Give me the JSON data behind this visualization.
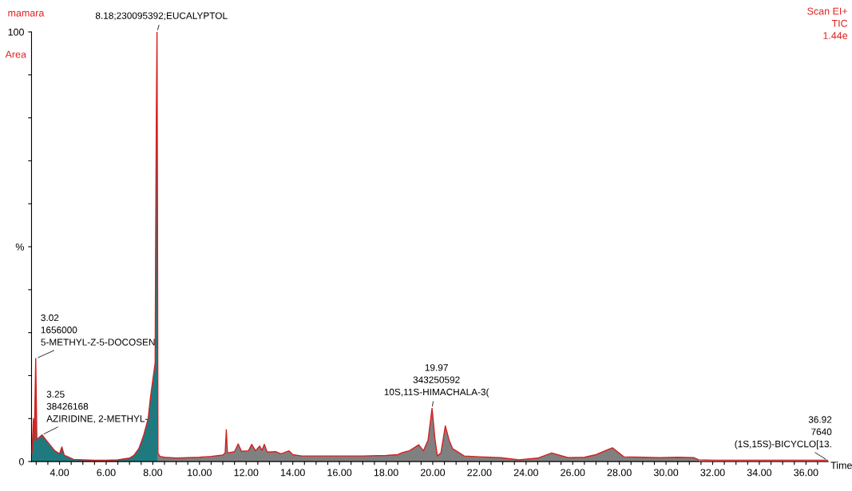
{
  "chart_data": {
    "type": "line",
    "title": "mamara",
    "ylabel": "Area",
    "xlabel": "Time",
    "series": [
      {
        "type": "area",
        "color": "#1f7a80",
        "x": [
          2.82,
          2.88,
          2.92,
          2.98,
          3.03,
          3.1,
          3.25,
          3.5,
          3.8,
          4.0,
          4.1,
          4.2,
          4.4,
          4.6,
          5.0,
          5.5,
          6.0,
          6.5,
          7.0,
          7.2,
          7.4,
          7.6,
          7.8,
          7.9,
          8.0,
          8.05,
          8.1,
          8.12,
          8.15,
          8.18,
          8.2,
          8.22
        ],
        "values": [
          2,
          10,
          5,
          24,
          5,
          5.5,
          6.2,
          4.5,
          2.5,
          1.8,
          3.4,
          1.5,
          1.0,
          0.5,
          0.4,
          0.3,
          0.3,
          0.4,
          0.8,
          1.5,
          3,
          6,
          10,
          15,
          19,
          21,
          23,
          50,
          80,
          100,
          60,
          2
        ]
      },
      {
        "type": "area",
        "color": "#808080",
        "x": [
          8.22,
          8.3,
          8.5,
          9.0,
          10.0,
          10.5,
          11.0,
          11.1,
          11.15,
          11.2,
          11.5,
          11.66,
          11.8,
          12.1,
          12.24,
          12.4,
          12.58,
          12.68,
          12.78,
          12.9,
          13.26,
          13.5,
          13.84,
          14.0,
          14.38,
          15.0,
          16.0,
          17.0,
          18.0,
          18.5,
          18.7,
          19.0,
          19.4,
          19.6,
          19.8,
          19.97,
          20.1,
          20.2,
          20.35,
          20.54,
          20.7,
          20.85,
          21.35,
          22.0,
          22.9,
          23.7,
          24.5,
          25.1,
          25.8,
          26.5,
          27.0,
          27.7,
          28.2,
          29.0,
          29.7,
          30.5,
          31.2,
          31.4
        ],
        "values": [
          2,
          1.2,
          1.0,
          0.8,
          1.0,
          1.2,
          1.5,
          2,
          7.4,
          2,
          2.3,
          4.1,
          2.4,
          2.5,
          4.0,
          2.5,
          3.6,
          2.6,
          4.0,
          2.2,
          2.3,
          1.8,
          2.5,
          1.6,
          1.3,
          1.3,
          1.3,
          1.3,
          1.4,
          1.6,
          2.1,
          2.5,
          3.9,
          2.5,
          5,
          12.4,
          5,
          1.3,
          2,
          8.3,
          5,
          3,
          1.3,
          1.1,
          0.9,
          0.4,
          0.8,
          2.0,
          0.9,
          1.0,
          1.6,
          3.2,
          1.1,
          1.0,
          0.9,
          1.0,
          0.9,
          0.4
        ]
      },
      {
        "color": "#d62020",
        "x": [
          2.82,
          2.88,
          2.92,
          2.98,
          3.03,
          3.1,
          3.25,
          3.5,
          3.8,
          4.0,
          4.1,
          4.2,
          4.4,
          4.6,
          5.0,
          5.5,
          6.0,
          6.5,
          7.0,
          7.2,
          7.4,
          7.6,
          7.8,
          7.9,
          8.0,
          8.05,
          8.1,
          8.12,
          8.15,
          8.18,
          8.2,
          8.22,
          8.3,
          8.5,
          9.0,
          10.0,
          10.5,
          11.0,
          11.1,
          11.15,
          11.2,
          11.5,
          11.66,
          11.8,
          12.1,
          12.24,
          12.4,
          12.58,
          12.68,
          12.78,
          12.9,
          13.26,
          13.5,
          13.84,
          14.0,
          14.38,
          15.0,
          16.0,
          17.0,
          18.0,
          18.5,
          18.7,
          19.0,
          19.4,
          19.6,
          19.8,
          19.97,
          20.1,
          20.2,
          20.35,
          20.54,
          20.7,
          20.85,
          21.35,
          22.0,
          22.9,
          23.7,
          24.5,
          25.1,
          25.8,
          26.5,
          27.0,
          27.7,
          28.2,
          29.0,
          29.7,
          30.5,
          31.2,
          31.4,
          32.0,
          34.0,
          36.92
        ],
        "values": [
          2,
          10,
          5,
          24,
          5,
          5.5,
          6.2,
          4.5,
          2.5,
          1.8,
          3.4,
          1.5,
          1.0,
          0.5,
          0.4,
          0.3,
          0.3,
          0.4,
          0.8,
          1.5,
          3,
          6,
          10,
          15,
          19,
          21,
          23,
          50,
          80,
          100,
          60,
          2,
          1.2,
          1.0,
          0.8,
          1.0,
          1.2,
          1.5,
          2,
          7.4,
          2,
          2.3,
          4.1,
          2.4,
          2.5,
          4.0,
          2.5,
          3.6,
          2.6,
          4.0,
          2.2,
          2.3,
          1.8,
          2.5,
          1.6,
          1.3,
          1.3,
          1.3,
          1.3,
          1.4,
          1.6,
          2.1,
          2.5,
          3.9,
          2.5,
          5,
          12.4,
          5,
          1.3,
          2,
          8.3,
          5,
          3,
          1.3,
          1.1,
          0.9,
          0.4,
          0.8,
          2.0,
          0.9,
          1.0,
          1.6,
          3.2,
          1.1,
          1.0,
          0.9,
          1.0,
          0.9,
          0.4,
          0.3,
          0.3,
          0.3
        ]
      }
    ],
    "xlim": [
      2.8,
      36.95
    ],
    "ylim": [
      0,
      100
    ],
    "xticks": [
      {
        "value": 3.0,
        "label": null
      },
      {
        "value": 3.5,
        "label": null
      },
      {
        "value": 4,
        "label": "4.00"
      },
      {
        "value": 4.5,
        "label": null
      },
      {
        "value": 5,
        "label": null
      },
      {
        "value": 5.5,
        "label": null
      },
      {
        "value": 6,
        "label": "6.00"
      },
      {
        "value": 6.5,
        "label": null
      },
      {
        "value": 7,
        "label": null
      },
      {
        "value": 7.5,
        "label": null
      },
      {
        "value": 8,
        "label": "8.00"
      },
      {
        "value": 8.5,
        "label": null
      },
      {
        "value": 9,
        "label": null
      },
      {
        "value": 9.5,
        "label": null
      },
      {
        "value": 10,
        "label": "10.00"
      },
      {
        "value": 10.5,
        "label": null
      },
      {
        "value": 11,
        "label": null
      },
      {
        "value": 11.5,
        "label": null
      },
      {
        "value": 12,
        "label": "12.00"
      },
      {
        "value": 12.5,
        "label": null
      },
      {
        "value": 13,
        "label": null
      },
      {
        "value": 13.5,
        "label": null
      },
      {
        "value": 14,
        "label": "14.00"
      },
      {
        "value": 14.5,
        "label": null
      },
      {
        "value": 15,
        "label": null
      },
      {
        "value": 15.5,
        "label": null
      },
      {
        "value": 16,
        "label": "16.00"
      },
      {
        "value": 16.5,
        "label": null
      },
      {
        "value": 17,
        "label": null
      },
      {
        "value": 17.5,
        "label": null
      },
      {
        "value": 18,
        "label": "18.00"
      },
      {
        "value": 18.5,
        "label": null
      },
      {
        "value": 19,
        "label": null
      },
      {
        "value": 19.5,
        "label": null
      },
      {
        "value": 20,
        "label": "20.00"
      },
      {
        "value": 20.5,
        "label": null
      },
      {
        "value": 21,
        "label": null
      },
      {
        "value": 21.5,
        "label": null
      },
      {
        "value": 22,
        "label": "22.00"
      },
      {
        "value": 22.5,
        "label": null
      },
      {
        "value": 23,
        "label": null
      },
      {
        "value": 23.5,
        "label": null
      },
      {
        "value": 24,
        "label": "24.00"
      },
      {
        "value": 24.5,
        "label": null
      },
      {
        "value": 25,
        "label": null
      },
      {
        "value": 25.5,
        "label": null
      },
      {
        "value": 26,
        "label": "26.00"
      },
      {
        "value": 26.5,
        "label": null
      },
      {
        "value": 27,
        "label": null
      },
      {
        "value": 27.5,
        "label": null
      },
      {
        "value": 28,
        "label": "28.00"
      },
      {
        "value": 28.5,
        "label": null
      },
      {
        "value": 29,
        "label": null
      },
      {
        "value": 29.5,
        "label": null
      },
      {
        "value": 30,
        "label": "30.00"
      },
      {
        "value": 30.5,
        "label": null
      },
      {
        "value": 31,
        "label": null
      },
      {
        "value": 31.5,
        "label": null
      },
      {
        "value": 32,
        "label": "32.00"
      },
      {
        "value": 32.5,
        "label": null
      },
      {
        "value": 33,
        "label": null
      },
      {
        "value": 33.5,
        "label": null
      },
      {
        "value": 34,
        "label": "34.00"
      },
      {
        "value": 34.5,
        "label": null
      },
      {
        "value": 35,
        "label": null
      },
      {
        "value": 35.5,
        "label": null
      },
      {
        "value": 36,
        "label": "36.00"
      },
      {
        "value": 36.5,
        "label": null
      }
    ],
    "yticks": [
      0,
      {
        "value": 10,
        "label": null
      },
      {
        "value": 20,
        "label": null
      },
      {
        "value": 30,
        "label": null
      },
      {
        "value": 40,
        "label": null
      },
      {
        "value": 50,
        "label": "%"
      },
      {
        "value": 60,
        "label": null
      },
      {
        "value": 70,
        "label": null
      },
      {
        "value": 80,
        "label": null
      },
      {
        "value": 90,
        "label": null
      },
      100
    ],
    "grid": false,
    "legend": false,
    "annotations": [
      {
        "text": "8.18;230095392;EUCALYPTOL",
        "x": 8.18,
        "y": 100
      },
      {
        "text": "3.02\n1656000\n5-METHYL-Z-5-DOCOSEN",
        "x": 3.0,
        "y": 24
      },
      {
        "text": "3.25\n38426168\nAZIRIDINE, 2-METHYL-",
        "x": 3.25,
        "y": 6.2
      },
      {
        "text": "19.97\n343250592\n10S,11S-HIMACHALA-3(",
        "x": 19.97,
        "y": 12.4
      },
      {
        "text": "36.92\n7640\n(1S,15S)-BICYCLO[13.",
        "x": 36.92,
        "y": 0.3
      },
      "Scan EI+\nTIC\n1.44e"
    ]
  }
}
